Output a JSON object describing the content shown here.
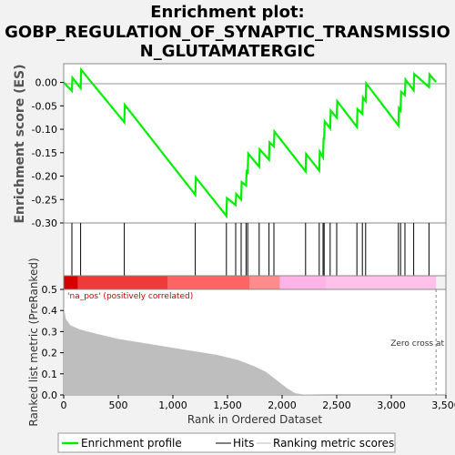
{
  "chart_data": {
    "type": "line",
    "title_lines": [
      "Enrichment plot:",
      "GOBP_REGULATION_OF_SYNAPTIC_TRANSMISSIO",
      "N_GLUTAMATERGIC"
    ],
    "es_panel": {
      "ylabel": "Enrichment score (ES)",
      "ylim": [
        -0.3,
        0.04
      ],
      "yticks": [
        0.0,
        -0.05,
        -0.1,
        -0.15,
        -0.2,
        -0.25,
        -0.3
      ],
      "ytick_labels": [
        "0.00",
        "-0.05",
        "-0.10",
        "-0.15",
        "-0.20",
        "-0.25",
        "-0.30"
      ],
      "series_name": "Enrichment profile",
      "color": "#00ee00",
      "points": [
        [
          0,
          0.0
        ],
        [
          75,
          -0.018
        ],
        [
          80,
          0.01
        ],
        [
          155,
          -0.012
        ],
        [
          160,
          0.027
        ],
        [
          555,
          -0.085
        ],
        [
          560,
          -0.048
        ],
        [
          1205,
          -0.24
        ],
        [
          1210,
          -0.203
        ],
        [
          1490,
          -0.285
        ],
        [
          1495,
          -0.247
        ],
        [
          1575,
          -0.262
        ],
        [
          1580,
          -0.238
        ],
        [
          1625,
          -0.25
        ],
        [
          1630,
          -0.213
        ],
        [
          1670,
          -0.22
        ],
        [
          1675,
          -0.19
        ],
        [
          1685,
          -0.192
        ],
        [
          1690,
          -0.152
        ],
        [
          1790,
          -0.18
        ],
        [
          1795,
          -0.143
        ],
        [
          1880,
          -0.165
        ],
        [
          1885,
          -0.128
        ],
        [
          1925,
          -0.137
        ],
        [
          1930,
          -0.105
        ],
        [
          2215,
          -0.19
        ],
        [
          2220,
          -0.153
        ],
        [
          2340,
          -0.188
        ],
        [
          2345,
          -0.148
        ],
        [
          2375,
          -0.16
        ],
        [
          2380,
          -0.12
        ],
        [
          2385,
          -0.12
        ],
        [
          2390,
          -0.083
        ],
        [
          2440,
          -0.098
        ],
        [
          2445,
          -0.06
        ],
        [
          2500,
          -0.075
        ],
        [
          2505,
          -0.04
        ],
        [
          2685,
          -0.095
        ],
        [
          2690,
          -0.057
        ],
        [
          2735,
          -0.067
        ],
        [
          2740,
          -0.032
        ],
        [
          2765,
          -0.04
        ],
        [
          2770,
          -0.002
        ],
        [
          3065,
          -0.092
        ],
        [
          3070,
          -0.055
        ],
        [
          3085,
          -0.06
        ],
        [
          3090,
          -0.02
        ],
        [
          3125,
          -0.027
        ],
        [
          3130,
          0.006
        ],
        [
          3205,
          -0.017
        ],
        [
          3210,
          0.018
        ],
        [
          3345,
          -0.01
        ],
        [
          3350,
          0.017
        ],
        [
          3410,
          0.001
        ]
      ]
    },
    "hits": {
      "series_name": "Hits",
      "positions": [
        75,
        155,
        555,
        1205,
        1490,
        1575,
        1625,
        1670,
        1685,
        1790,
        1880,
        1925,
        2215,
        2340,
        2375,
        2385,
        2440,
        2500,
        2685,
        2735,
        2765,
        3065,
        3085,
        3125,
        3205,
        3345
      ]
    },
    "rank_bar": {
      "segments": [
        {
          "from": 0,
          "to": 130,
          "color": "#d60000"
        },
        {
          "from": 130,
          "to": 950,
          "color": "#ef3a3a"
        },
        {
          "from": 950,
          "to": 1700,
          "color": "#ff6464"
        },
        {
          "from": 1700,
          "to": 1980,
          "color": "#ff8c8c"
        },
        {
          "from": 1980,
          "to": 2400,
          "color": "#ffb3e6"
        },
        {
          "from": 2400,
          "to": 3410,
          "color": "#ffc0ea"
        }
      ]
    },
    "metric_panel": {
      "ylabel": "Ranked list metric (PreRanked)",
      "xlabel": "Rank in Ordered Dataset",
      "ylim": [
        0,
        0.5
      ],
      "yticks": [
        0.0,
        0.1,
        0.2,
        0.3,
        0.4,
        0.5
      ],
      "ytick_labels": [
        "0.0",
        "0.1",
        "0.2",
        "0.3",
        "0.4",
        "0.5"
      ],
      "xlim": [
        0,
        3500
      ],
      "xticks": [
        0,
        500,
        1000,
        1500,
        2000,
        2500,
        3000,
        3500
      ],
      "xtick_labels": [
        "0",
        "500",
        "1,000",
        "1,500",
        "2,000",
        "2,500",
        "3,000",
        "3,500"
      ],
      "series_name": "Ranking metric scores",
      "fill_color": "#bebebe",
      "curve": [
        [
          0,
          0.42
        ],
        [
          20,
          0.36
        ],
        [
          60,
          0.33
        ],
        [
          150,
          0.31
        ],
        [
          300,
          0.29
        ],
        [
          500,
          0.265
        ],
        [
          800,
          0.24
        ],
        [
          1100,
          0.215
        ],
        [
          1400,
          0.19
        ],
        [
          1600,
          0.165
        ],
        [
          1750,
          0.135
        ],
        [
          1850,
          0.11
        ],
        [
          1950,
          0.07
        ],
        [
          2050,
          0.03
        ],
        [
          2120,
          0.008
        ],
        [
          2200,
          0.002
        ],
        [
          2400,
          0.0
        ],
        [
          3410,
          0.0
        ]
      ],
      "annotation_pos": "'na_pos' (positively correlated)",
      "annotation_zero": "Zero cross at",
      "zero_cross_rank": 3410
    },
    "legend": {
      "position": "bottom",
      "entries": [
        "Enrichment profile",
        "Hits",
        "Ranking metric scores"
      ]
    }
  }
}
